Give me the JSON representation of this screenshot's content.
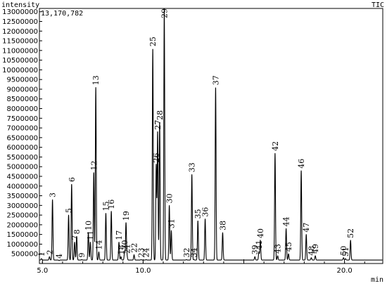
{
  "header": {
    "y_axis_title": "intensity",
    "trace_label": "TIC",
    "max_intensity": "13,170,782",
    "x_axis_unit": "min"
  },
  "chart_data": {
    "type": "line",
    "xlabel": "min",
    "ylabel": "intensity",
    "xlim": [
      4.85,
      21.9
    ],
    "ylim": [
      0,
      13170782
    ],
    "y_ticks": [
      500000,
      1000000,
      1500000,
      2000000,
      2500000,
      3000000,
      3500000,
      4000000,
      4500000,
      5000000,
      5500000,
      6000000,
      6500000,
      7000000,
      7500000,
      8000000,
      8500000,
      9000000,
      9500000,
      10000000,
      10500000,
      11000000,
      11500000,
      12000000,
      12500000,
      13000000
    ],
    "x_ticks": [
      5.0,
      10.0,
      15.0,
      20.0
    ],
    "x_tick_labels": [
      "5.0",
      "10.0",
      "",
      "20.0"
    ],
    "grid": false,
    "series": [
      {
        "peaks": [
          {
            "label": "1",
            "rt": 4.95,
            "height": 250000
          },
          {
            "label": "2",
            "rt": 5.35,
            "height": 350000
          },
          {
            "label": "3",
            "rt": 5.5,
            "height": 3300000
          },
          {
            "label": "4",
            "rt": 5.83,
            "height": 150000
          },
          {
            "label": "5",
            "rt": 6.3,
            "height": 2500000
          },
          {
            "label": "6",
            "rt": 6.45,
            "height": 4100000
          },
          {
            "label": "7",
            "rt": 6.6,
            "height": 1100000
          },
          {
            "label": "8",
            "rt": 6.7,
            "height": 1400000
          },
          {
            "label": "9",
            "rt": 6.95,
            "height": 200000
          },
          {
            "label": "10",
            "rt": 7.28,
            "height": 1600000
          },
          {
            "label": "11",
            "rt": 7.38,
            "height": 1100000
          },
          {
            "label": "12",
            "rt": 7.55,
            "height": 4700000
          },
          {
            "label": "13",
            "rt": 7.65,
            "height": 9100000
          },
          {
            "label": "14",
            "rt": 7.8,
            "height": 600000
          },
          {
            "label": "15",
            "rt": 8.15,
            "height": 2600000
          },
          {
            "label": "16",
            "rt": 8.42,
            "height": 2700000
          },
          {
            "label": "17",
            "rt": 8.8,
            "height": 1100000
          },
          {
            "label": "18",
            "rt": 8.9,
            "height": 350000
          },
          {
            "label": "19",
            "rt": 9.15,
            "height": 2100000
          },
          {
            "label": "20",
            "rt": 9.08,
            "height": 600000
          },
          {
            "label": "21",
            "rt": 9.2,
            "height": 400000
          },
          {
            "label": "22",
            "rt": 9.55,
            "height": 450000
          },
          {
            "label": "23",
            "rt": 9.9,
            "height": 200000
          },
          {
            "label": "24",
            "rt": 10.15,
            "height": 200000
          },
          {
            "label": "25",
            "rt": 10.48,
            "height": 11100000
          },
          {
            "label": "26",
            "rt": 10.65,
            "height": 5100000
          },
          {
            "label": "27",
            "rt": 10.72,
            "height": 6800000
          },
          {
            "label": "28",
            "rt": 10.82,
            "height": 7300000
          },
          {
            "label": "29",
            "rt": 11.05,
            "height": 13170782
          },
          {
            "label": "30",
            "rt": 11.3,
            "height": 3000000
          },
          {
            "label": "31",
            "rt": 11.4,
            "height": 1700000
          },
          {
            "label": "32",
            "rt": 12.15,
            "height": 200000
          },
          {
            "label": "33",
            "rt": 12.42,
            "height": 4600000
          },
          {
            "label": "34",
            "rt": 12.52,
            "height": 200000
          },
          {
            "label": "35",
            "rt": 12.72,
            "height": 2200000
          },
          {
            "label": "36",
            "rt": 13.08,
            "height": 2300000
          },
          {
            "label": "37",
            "rt": 13.6,
            "height": 9100000
          },
          {
            "label": "38",
            "rt": 13.95,
            "height": 1600000
          },
          {
            "label": "39",
            "rt": 15.55,
            "height": 350000
          },
          {
            "label": "40",
            "rt": 15.82,
            "height": 1200000
          },
          {
            "label": "41",
            "rt": 15.75,
            "height": 600000
          },
          {
            "label": "42",
            "rt": 16.55,
            "height": 5700000
          },
          {
            "label": "43",
            "rt": 16.68,
            "height": 400000
          },
          {
            "label": "44",
            "rt": 17.1,
            "height": 1800000
          },
          {
            "label": "45",
            "rt": 17.22,
            "height": 500000
          },
          {
            "label": "46",
            "rt": 17.85,
            "height": 4800000
          },
          {
            "label": "47",
            "rt": 18.1,
            "height": 1500000
          },
          {
            "label": "48",
            "rt": 18.35,
            "height": 300000
          },
          {
            "label": "49",
            "rt": 18.55,
            "height": 400000
          },
          {
            "label": "50",
            "rt": 19.95,
            "height": 300000
          },
          {
            "label": "51",
            "rt": 20.05,
            "height": 250000
          },
          {
            "label": "52",
            "rt": 20.3,
            "height": 1200000
          }
        ]
      }
    ]
  }
}
